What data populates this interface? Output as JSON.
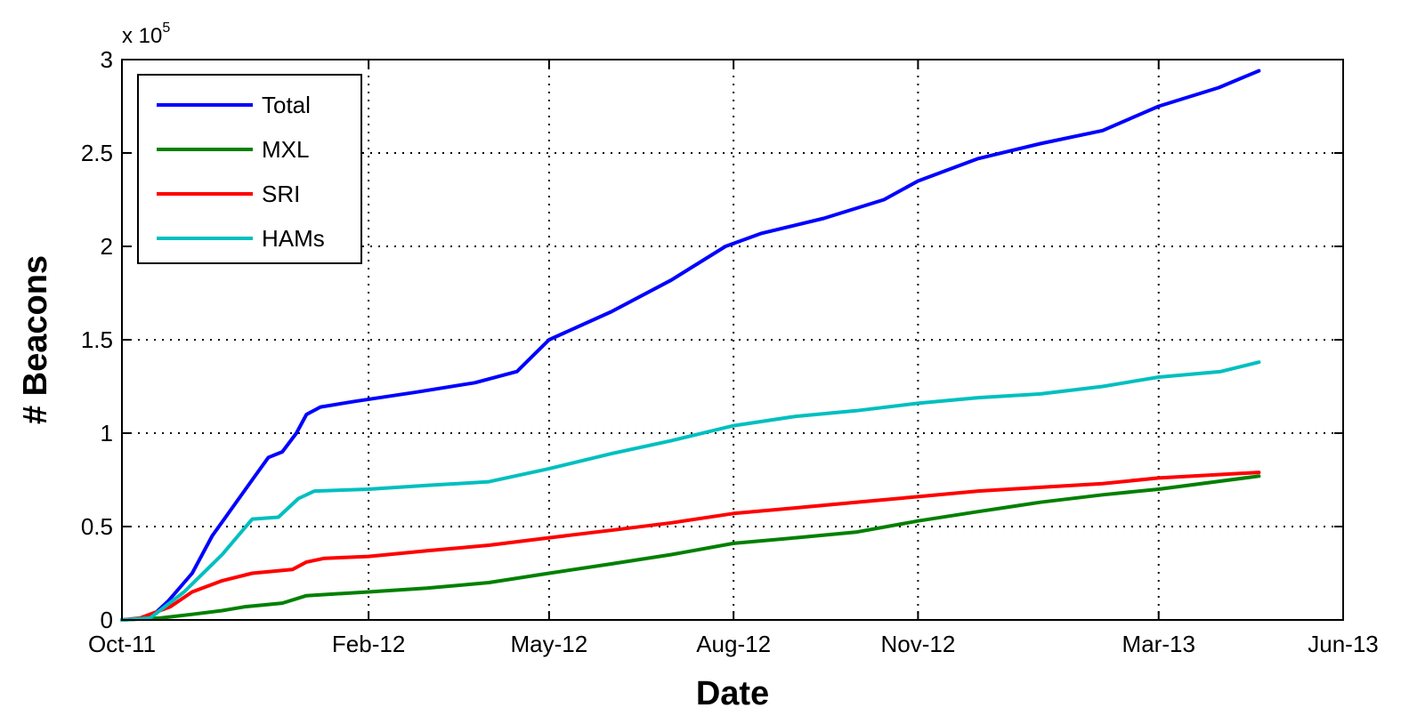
{
  "chart_data": {
    "type": "line",
    "title": "",
    "xlabel": "Date",
    "ylabel": "# Beacons",
    "y_multiplier_label": "x 10",
    "y_multiplier_exponent": "5",
    "x_ticks": [
      "Oct-11",
      "Feb-12",
      "May-12",
      "Aug-12",
      "Nov-12",
      "Mar-13",
      "Jun-13"
    ],
    "x_tick_dates": [
      "2011-10-01",
      "2012-02-01",
      "2012-05-01",
      "2012-08-01",
      "2012-11-01",
      "2013-03-01",
      "2013-06-01"
    ],
    "xlim": [
      "2011-10-01",
      "2013-06-01"
    ],
    "y_ticks": [
      "0",
      "0.5",
      "1",
      "1.5",
      "2",
      "2.5",
      "3"
    ],
    "ylim": [
      0,
      3
    ],
    "grid": true,
    "legend_position": "top-left",
    "series": [
      {
        "name": "Total",
        "color": "#0000ff",
        "points": [
          [
            "2011-10-01",
            0
          ],
          [
            "2011-10-15",
            0.01
          ],
          [
            "2011-10-24",
            0.1
          ],
          [
            "2011-11-05",
            0.25
          ],
          [
            "2011-11-15",
            0.45
          ],
          [
            "2011-11-25",
            0.6
          ],
          [
            "2011-12-05",
            0.75
          ],
          [
            "2011-12-13",
            0.87
          ],
          [
            "2011-12-20",
            0.9
          ],
          [
            "2011-12-27",
            1.0
          ],
          [
            "2012-01-01",
            1.1
          ],
          [
            "2012-01-08",
            1.14
          ],
          [
            "2012-01-25",
            1.17
          ],
          [
            "2012-02-25",
            1.22
          ],
          [
            "2012-03-25",
            1.27
          ],
          [
            "2012-04-15",
            1.33
          ],
          [
            "2012-05-01",
            1.5
          ],
          [
            "2012-06-01",
            1.65
          ],
          [
            "2012-07-01",
            1.82
          ],
          [
            "2012-07-28",
            2.0
          ],
          [
            "2012-08-15",
            2.07
          ],
          [
            "2012-09-15",
            2.15
          ],
          [
            "2012-10-15",
            2.25
          ],
          [
            "2012-11-01",
            2.35
          ],
          [
            "2012-12-01",
            2.47
          ],
          [
            "2013-01-01",
            2.55
          ],
          [
            "2013-02-01",
            2.62
          ],
          [
            "2013-03-01",
            2.75
          ],
          [
            "2013-03-31",
            2.85
          ],
          [
            "2013-04-20",
            2.94
          ]
        ]
      },
      {
        "name": "MXL",
        "color": "#008000",
        "points": [
          [
            "2011-10-01",
            0
          ],
          [
            "2011-10-20",
            0.01
          ],
          [
            "2011-11-05",
            0.03
          ],
          [
            "2011-11-20",
            0.05
          ],
          [
            "2011-12-01",
            0.07
          ],
          [
            "2011-12-20",
            0.09
          ],
          [
            "2012-01-01",
            0.13
          ],
          [
            "2012-02-01",
            0.15
          ],
          [
            "2012-03-01",
            0.17
          ],
          [
            "2012-04-01",
            0.2
          ],
          [
            "2012-05-01",
            0.25
          ],
          [
            "2012-06-01",
            0.3
          ],
          [
            "2012-07-01",
            0.35
          ],
          [
            "2012-08-01",
            0.41
          ],
          [
            "2012-09-01",
            0.44
          ],
          [
            "2012-10-01",
            0.47
          ],
          [
            "2012-11-01",
            0.53
          ],
          [
            "2012-12-01",
            0.58
          ],
          [
            "2013-01-01",
            0.63
          ],
          [
            "2013-02-01",
            0.67
          ],
          [
            "2013-03-01",
            0.7
          ],
          [
            "2013-04-20",
            0.77
          ]
        ]
      },
      {
        "name": "SRI",
        "color": "#ff0000",
        "points": [
          [
            "2011-10-01",
            0
          ],
          [
            "2011-10-10",
            0.01
          ],
          [
            "2011-10-25",
            0.07
          ],
          [
            "2011-11-05",
            0.15
          ],
          [
            "2011-11-20",
            0.21
          ],
          [
            "2011-12-05",
            0.25
          ],
          [
            "2011-12-25",
            0.27
          ],
          [
            "2012-01-01",
            0.31
          ],
          [
            "2012-01-10",
            0.33
          ],
          [
            "2012-02-01",
            0.34
          ],
          [
            "2012-03-01",
            0.37
          ],
          [
            "2012-04-01",
            0.4
          ],
          [
            "2012-05-01",
            0.44
          ],
          [
            "2012-06-01",
            0.48
          ],
          [
            "2012-07-01",
            0.52
          ],
          [
            "2012-08-01",
            0.57
          ],
          [
            "2012-09-01",
            0.6
          ],
          [
            "2012-10-01",
            0.63
          ],
          [
            "2012-11-01",
            0.66
          ],
          [
            "2012-12-01",
            0.69
          ],
          [
            "2013-01-01",
            0.71
          ],
          [
            "2013-02-01",
            0.73
          ],
          [
            "2013-03-01",
            0.76
          ],
          [
            "2013-04-20",
            0.79
          ]
        ]
      },
      {
        "name": "HAMs",
        "color": "#00bfbf",
        "points": [
          [
            "2011-10-01",
            0
          ],
          [
            "2011-10-15",
            0.01
          ],
          [
            "2011-11-01",
            0.15
          ],
          [
            "2011-11-20",
            0.35
          ],
          [
            "2011-12-05",
            0.54
          ],
          [
            "2011-12-18",
            0.55
          ],
          [
            "2011-12-28",
            0.65
          ],
          [
            "2012-01-05",
            0.69
          ],
          [
            "2012-02-01",
            0.7
          ],
          [
            "2012-03-01",
            0.72
          ],
          [
            "2012-04-01",
            0.74
          ],
          [
            "2012-05-01",
            0.81
          ],
          [
            "2012-06-01",
            0.89
          ],
          [
            "2012-07-01",
            0.96
          ],
          [
            "2012-08-01",
            1.04
          ],
          [
            "2012-09-01",
            1.09
          ],
          [
            "2012-10-01",
            1.12
          ],
          [
            "2012-11-01",
            1.16
          ],
          [
            "2012-12-01",
            1.19
          ],
          [
            "2013-01-01",
            1.21
          ],
          [
            "2013-02-01",
            1.25
          ],
          [
            "2013-03-01",
            1.3
          ],
          [
            "2013-04-01",
            1.33
          ],
          [
            "2013-04-20",
            1.38
          ]
        ]
      }
    ]
  }
}
